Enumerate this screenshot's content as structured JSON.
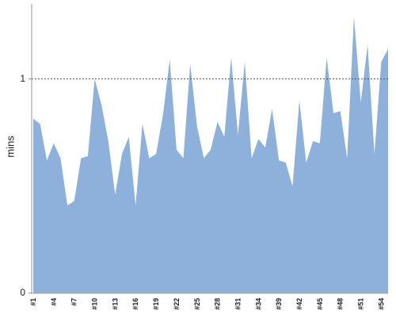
{
  "chart_data": {
    "type": "area",
    "y_label": "mins",
    "categories": [
      "#1",
      null,
      null,
      "#4",
      null,
      null,
      "#7",
      null,
      null,
      "#10",
      null,
      null,
      "#13",
      null,
      null,
      "#16",
      null,
      null,
      "#19",
      null,
      null,
      "#22",
      null,
      null,
      "#25",
      null,
      null,
      "#28",
      null,
      null,
      "#31",
      null,
      null,
      "#34",
      null,
      null,
      "#39",
      null,
      null,
      "#42",
      null,
      null,
      "#45",
      null,
      null,
      "#48",
      null,
      null,
      "#51",
      null,
      null,
      "#54",
      null
    ],
    "values": [
      0.815,
      0.79,
      0.62,
      0.7,
      0.63,
      0.41,
      0.43,
      0.63,
      0.64,
      1.0,
      0.88,
      0.71,
      0.46,
      0.65,
      0.73,
      0.41,
      0.79,
      0.63,
      0.65,
      0.83,
      1.09,
      0.67,
      0.63,
      1.07,
      0.78,
      0.63,
      0.67,
      0.8,
      0.73,
      1.1,
      0.74,
      1.08,
      0.63,
      0.72,
      0.68,
      0.86,
      0.62,
      0.61,
      0.5,
      0.9,
      0.61,
      0.71,
      0.7,
      1.1,
      0.84,
      0.85,
      0.63,
      1.29,
      0.89,
      1.16,
      0.65,
      1.08,
      1.14
    ],
    "color": "#8eb1dc",
    "ylim": [
      0,
      1.35
    ],
    "yticks": [
      0,
      1
    ],
    "grid": true
  }
}
